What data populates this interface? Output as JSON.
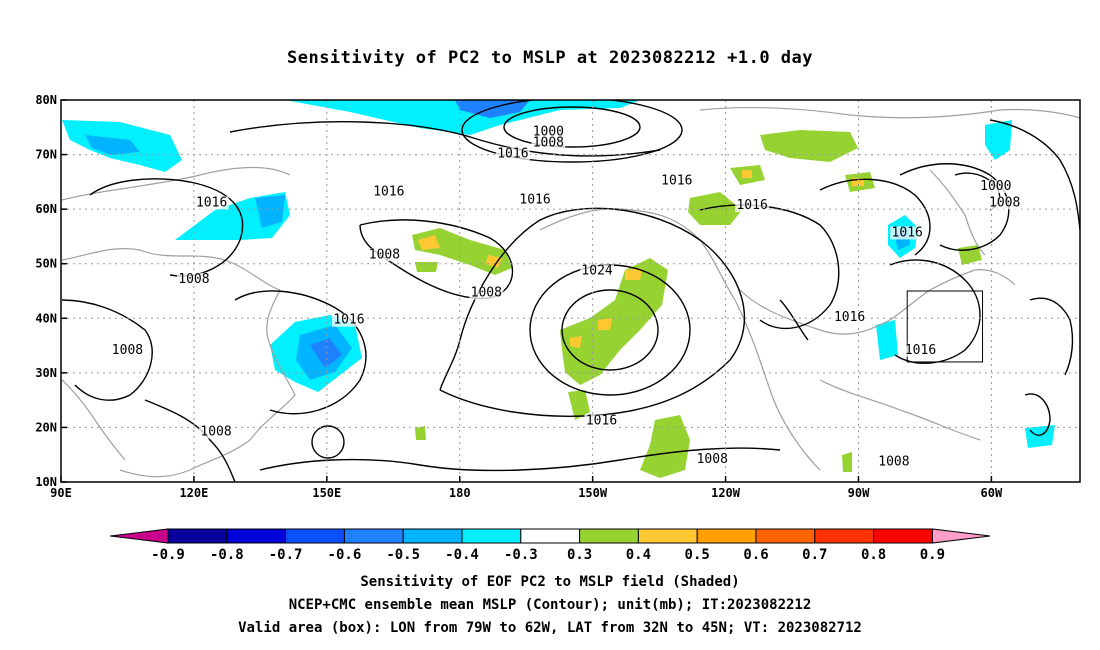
{
  "title": "Sensitivity of PC2 to MSLP at 2023082212 +1.0 day",
  "footer": {
    "line1": "Sensitivity of EOF PC2 to MSLP field (Shaded)",
    "line2": "NCEP+CMC ensemble mean MSLP (Contour); unit(mb); IT:2023082212",
    "line3": "Valid area (box): LON from 79W to 62W, LAT from 32N to 45N; VT: 2023082712"
  },
  "map": {
    "lon_range": [
      90,
      320
    ],
    "lat_range": [
      10,
      80
    ],
    "lon_ticks": [
      {
        "value": 90,
        "label": "90E"
      },
      {
        "value": 120,
        "label": "120E"
      },
      {
        "value": 150,
        "label": "150E"
      },
      {
        "value": 180,
        "label": "180"
      },
      {
        "value": 210,
        "label": "150W"
      },
      {
        "value": 240,
        "label": "120W"
      },
      {
        "value": 270,
        "label": "90W"
      },
      {
        "value": 300,
        "label": "60W"
      }
    ],
    "lat_ticks": [
      {
        "value": 10,
        "label": "10N"
      },
      {
        "value": 20,
        "label": "20N"
      },
      {
        "value": 30,
        "label": "30N"
      },
      {
        "value": 40,
        "label": "40N"
      },
      {
        "value": 50,
        "label": "50N"
      },
      {
        "value": 60,
        "label": "60N"
      },
      {
        "value": 70,
        "label": "70N"
      },
      {
        "value": 80,
        "label": "80N"
      }
    ],
    "valid_box": {
      "lon_min": 281,
      "lon_max": 298,
      "lat_min": 32,
      "lat_max": 45
    },
    "contour_labels": [
      {
        "text": "1000",
        "lon": 200,
        "lat": 73.5
      },
      {
        "text": "1008",
        "lon": 200,
        "lat": 71.5
      },
      {
        "text": "1016",
        "lon": 192,
        "lat": 69.5
      },
      {
        "text": "1016",
        "lon": 124,
        "lat": 60.5
      },
      {
        "text": "1016",
        "lon": 164,
        "lat": 62.5
      },
      {
        "text": "1016",
        "lon": 229,
        "lat": 64.5
      },
      {
        "text": "1016",
        "lon": 197,
        "lat": 61
      },
      {
        "text": "1016",
        "lon": 246,
        "lat": 60
      },
      {
        "text": "1016",
        "lon": 281,
        "lat": 55
      },
      {
        "text": "1000",
        "lon": 301,
        "lat": 63.5
      },
      {
        "text": "1008",
        "lon": 303,
        "lat": 60.5
      },
      {
        "text": "1008",
        "lon": 120,
        "lat": 46.5
      },
      {
        "text": "1008",
        "lon": 163,
        "lat": 51
      },
      {
        "text": "1008",
        "lon": 186,
        "lat": 44
      },
      {
        "text": "1024",
        "lon": 211,
        "lat": 48
      },
      {
        "text": "1016",
        "lon": 155,
        "lat": 39
      },
      {
        "text": "1016",
        "lon": 268,
        "lat": 39.5
      },
      {
        "text": "1016",
        "lon": 284,
        "lat": 33.5
      },
      {
        "text": "1008",
        "lon": 105,
        "lat": 33.5
      },
      {
        "text": "1008",
        "lon": 125,
        "lat": 18.5
      },
      {
        "text": "1016",
        "lon": 212,
        "lat": 20.5
      },
      {
        "text": "1008",
        "lon": 237,
        "lat": 13.5
      },
      {
        "text": "1008",
        "lon": 278,
        "lat": 13
      }
    ]
  },
  "colorbar": {
    "labels": [
      "-0.9",
      "-0.8",
      "-0.7",
      "-0.6",
      "-0.5",
      "-0.4",
      "-0.3",
      "0.3",
      "0.4",
      "0.5",
      "0.6",
      "0.7",
      "0.8",
      "0.9"
    ],
    "colors": [
      "#0a00a0",
      "#0000d8",
      "#0a50ff",
      "#1e82ff",
      "#00b4ff",
      "#00f0ff",
      "#ffffff",
      "#96d232",
      "#ffc832",
      "#ffa000",
      "#ff6400",
      "#ff3200",
      "#ff0000"
    ],
    "low_end_color": "#c8008c",
    "high_end_color": "#ff9ec8"
  }
}
